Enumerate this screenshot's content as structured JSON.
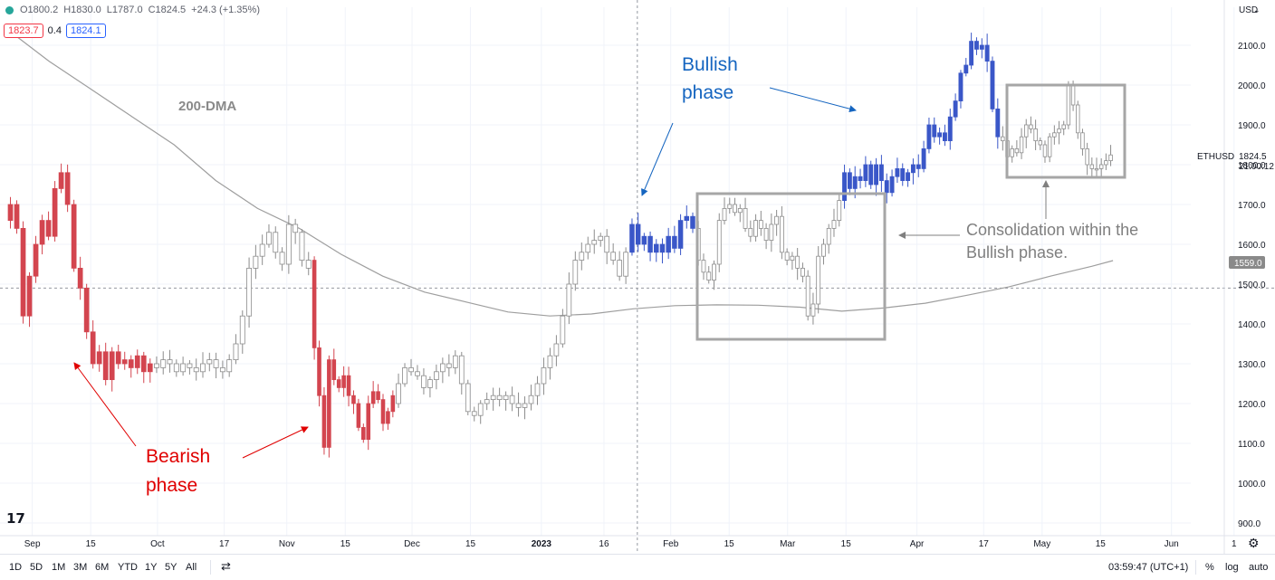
{
  "legend": {
    "open": "O1800.2",
    "high": "H1830.0",
    "low": "L1787.0",
    "close": "C1824.5",
    "change": "+24.3 (+1.35%)",
    "bid": "1823.7",
    "spread": "0.4",
    "ask": "1824.1"
  },
  "currency_label": "USD",
  "symbol_label": "ETHUSD",
  "last_price_label": "1824.5",
  "countdown_label": "21:00:12",
  "ma_price_label": "1559.0",
  "colors": {
    "up_blue": "#3a57c8",
    "down_red": "#d3454f",
    "neutral": "#9598a1",
    "ma_line": "#9e9e9e",
    "bearish_annotation": "#e00000",
    "bullish_annotation": "#1565c0",
    "box": "#a6a6a6"
  },
  "annotations": {
    "ma": "200-DMA",
    "bullish_line1": "Bullish",
    "bullish_line2": "phase",
    "bearish_line1": "Bearish",
    "bearish_line2": "phase",
    "consolidation_line1": "Consolidation within the",
    "consolidation_line2": "Bullish phase."
  },
  "toolbar": {
    "timeframes": [
      "1D",
      "5D",
      "1M",
      "3M",
      "6M",
      "YTD",
      "1Y",
      "5Y",
      "All"
    ],
    "clock": "03:59:47 (UTC+1)",
    "percent": "%",
    "log": "log",
    "auto": "auto"
  },
  "chart_data": {
    "type": "candlestick",
    "symbol": "ETHUSD",
    "ylim": [
      880,
      2150
    ],
    "y_ticks": [
      900,
      1000,
      1100,
      1200,
      1300,
      1400,
      1500,
      1600,
      1700,
      1800,
      1900,
      2000,
      2100
    ],
    "y_tick_labels": [
      "900.0",
      "1000.0",
      "1100.0",
      "1200.0",
      "1300.0",
      "1400.0",
      "1500.0",
      "1600.0",
      "1700.0",
      "1800.0",
      "1900.0",
      "2000.0",
      "2100.0"
    ],
    "x_ticks": [
      {
        "label": "Sep",
        "date": "2022-09-01"
      },
      {
        "label": "15",
        "date": "2022-09-15"
      },
      {
        "label": "Oct",
        "date": "2022-10-01"
      },
      {
        "label": "17",
        "date": "2022-10-17"
      },
      {
        "label": "Nov",
        "date": "2022-11-01"
      },
      {
        "label": "15",
        "date": "2022-11-15"
      },
      {
        "label": "Dec",
        "date": "2022-12-01"
      },
      {
        "label": "15",
        "date": "2022-12-15"
      },
      {
        "label": "2023",
        "date": "2023-01-01"
      },
      {
        "label": "16",
        "date": "2023-01-16"
      },
      {
        "label": "Feb",
        "date": "2023-02-01"
      },
      {
        "label": "15",
        "date": "2023-02-15"
      },
      {
        "label": "Mar",
        "date": "2023-03-01"
      },
      {
        "label": "15",
        "date": "2023-03-15"
      },
      {
        "label": "Apr",
        "date": "2023-04-01"
      },
      {
        "label": "17",
        "date": "2023-04-17"
      },
      {
        "label": "May",
        "date": "2023-05-01"
      },
      {
        "label": "15",
        "date": "2023-05-15"
      },
      {
        "label": "Jun",
        "date": "2023-06-01"
      },
      {
        "label": "1",
        "date": "2023-06-16"
      }
    ],
    "last_price": 1824.5,
    "crosshair": {
      "date": "2023-01-24",
      "price": 1490
    },
    "dma200": [
      [
        "2022-08-26",
        2140
      ],
      [
        "2022-09-05",
        2060
      ],
      [
        "2022-09-15",
        1990
      ],
      [
        "2022-09-25",
        1920
      ],
      [
        "2022-10-05",
        1850
      ],
      [
        "2022-10-15",
        1760
      ],
      [
        "2022-10-25",
        1690
      ],
      [
        "2022-11-04",
        1640
      ],
      [
        "2022-11-14",
        1575
      ],
      [
        "2022-11-24",
        1520
      ],
      [
        "2022-12-04",
        1480
      ],
      [
        "2022-12-14",
        1455
      ],
      [
        "2022-12-24",
        1430
      ],
      [
        "2023-01-03",
        1420
      ],
      [
        "2023-01-13",
        1425
      ],
      [
        "2023-01-23",
        1438
      ],
      [
        "2023-02-02",
        1446
      ],
      [
        "2023-02-12",
        1448
      ],
      [
        "2023-02-22",
        1447
      ],
      [
        "2023-03-04",
        1442
      ],
      [
        "2023-03-14",
        1432
      ],
      [
        "2023-03-24",
        1440
      ],
      [
        "2023-04-03",
        1452
      ],
      [
        "2023-04-13",
        1472
      ],
      [
        "2023-04-23",
        1493
      ],
      [
        "2023-05-03",
        1520
      ],
      [
        "2023-05-13",
        1545
      ],
      [
        "2023-05-18",
        1559
      ]
    ],
    "segments": [
      {
        "name": "Bearish phase",
        "start": "2022-08-26",
        "end": "2022-09-30",
        "color": "down_red",
        "opens_at": 1660,
        "path": [
          1700,
          1640,
          1420,
          1520,
          1600,
          1660,
          1620,
          1740,
          1780,
          1700,
          1540,
          1490,
          1380,
          1300,
          1330,
          1260,
          1330,
          1300,
          1310,
          1290,
          1320,
          1280,
          1300
        ]
      },
      {
        "start": "2022-09-30",
        "end": "2022-11-07",
        "color": "neutral",
        "opens_at": 1300,
        "path": [
          1290,
          1310,
          1300,
          1280,
          1300,
          1290,
          1280,
          1300,
          1310,
          1290,
          1280,
          1310,
          1350,
          1420,
          1540,
          1570,
          1600,
          1630,
          1580,
          1550,
          1650,
          1630,
          1560,
          1540
        ]
      },
      {
        "start": "2022-11-07",
        "end": "2022-11-27",
        "color": "down_red",
        "opens_at": 1560,
        "path": [
          1340,
          1220,
          1090,
          1310,
          1260,
          1240,
          1270,
          1220,
          1200,
          1140,
          1110,
          1200,
          1230,
          1210,
          1150,
          1180,
          1220
        ]
      },
      {
        "start": "2022-11-27",
        "end": "2023-01-22",
        "color": "neutral",
        "opens_at": 1200,
        "path": [
          1250,
          1290,
          1280,
          1270,
          1240,
          1260,
          1280,
          1300,
          1290,
          1320,
          1250,
          1180,
          1170,
          1200,
          1210,
          1220,
          1210,
          1220,
          1200,
          1190,
          1200,
          1220,
          1250,
          1290,
          1320,
          1350,
          1420,
          1500,
          1560,
          1580,
          1600,
          1610,
          1620,
          1580,
          1560,
          1520,
          1580
        ]
      },
      {
        "name": "Bullish phase",
        "start": "2023-01-22",
        "end": "2023-02-07",
        "color": "up_blue",
        "opens_at": 1580,
        "path": [
          1650,
          1600,
          1620,
          1580,
          1600,
          1580,
          1620,
          1590,
          1660,
          1670,
          1640
        ]
      },
      {
        "name": "Consolidation",
        "start": "2023-02-07",
        "end": "2023-03-14",
        "color": "neutral",
        "opens_at": 1640,
        "path": [
          1560,
          1530,
          1510,
          1550,
          1660,
          1690,
          1700,
          1680,
          1690,
          1640,
          1620,
          1660,
          1640,
          1610,
          1650,
          1670,
          1580,
          1560,
          1570,
          1540,
          1520,
          1420,
          1450,
          1570,
          1600,
          1640,
          1660,
          1710
        ]
      },
      {
        "start": "2023-03-14",
        "end": "2023-04-21",
        "color": "up_blue",
        "opens_at": 1710,
        "path": [
          1780,
          1740,
          1770,
          1760,
          1800,
          1750,
          1800,
          1760,
          1730,
          1770,
          1790,
          1760,
          1780,
          1800,
          1790,
          1840,
          1900,
          1870,
          1880,
          1860,
          1920,
          1960,
          2030,
          2050,
          2110,
          2090,
          2100,
          2060,
          1940,
          1870
        ]
      },
      {
        "start": "2023-04-21",
        "end": "2023-05-18",
        "color": "neutral",
        "opens_at": 1870,
        "path": [
          1860,
          1820,
          1840,
          1830,
          1870,
          1900,
          1890,
          1860,
          1850,
          1820,
          1870,
          1880,
          1890,
          1900,
          2000,
          1950,
          1880,
          1840,
          1800,
          1790,
          1790,
          1800,
          1810,
          1824.5
        ]
      }
    ]
  }
}
